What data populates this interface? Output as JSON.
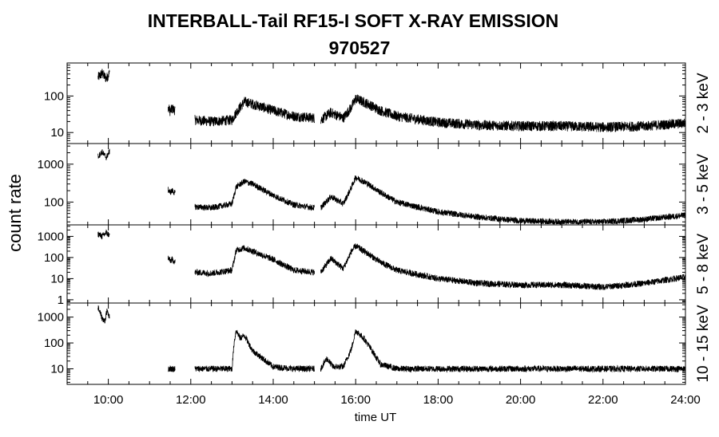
{
  "chart_data": {
    "type": "line",
    "title": "INTERBALL-Tail RF15-I SOFT X-RAY EMISSION",
    "subtitle": "970527",
    "ylabel": "count rate",
    "xlabel": "time UT",
    "xlim": [
      9,
      24
    ],
    "xticks": [
      "10:00",
      "12:00",
      "14:00",
      "16:00",
      "18:00",
      "20:00",
      "22:00",
      "24:00"
    ],
    "y_scale": "log",
    "grid": false,
    "panels": [
      {
        "name": "2 - 3 keV",
        "ylim": [
          5,
          800
        ],
        "yticks": [
          {
            "v": 10,
            "label": "10"
          },
          {
            "v": 100,
            "label": "100"
          }
        ],
        "noise": 0.14,
        "segments": [
          {
            "x": [
              9.75,
              9.85,
              9.95,
              10.03
            ],
            "y": [
              320,
              420,
              300,
              430
            ]
          },
          {
            "x": [
              11.45,
              11.5,
              11.55,
              11.62
            ],
            "y": [
              50,
              38,
              45,
              40
            ]
          },
          {
            "x": [
              12.1,
              12.5,
              13.0,
              13.1,
              13.3,
              13.5,
              14.0,
              14.5,
              15.0
            ],
            "y": [
              22,
              20,
              22,
              35,
              70,
              60,
              40,
              28,
              25
            ]
          },
          {
            "x": [
              15.15,
              15.4,
              15.7,
              15.9,
              16.0,
              16.3,
              16.6,
              17.0,
              18.0,
              19.0,
              20.0,
              21.0,
              22.0,
              23.0,
              24.0
            ],
            "y": [
              22,
              35,
              25,
              50,
              85,
              60,
              40,
              28,
              19,
              16,
              15,
              15,
              14,
              15,
              18
            ]
          }
        ]
      },
      {
        "name": "3 - 5 keV",
        "ylim": [
          25,
          3500
        ],
        "yticks": [
          {
            "v": 100,
            "label": "100"
          },
          {
            "v": 1000,
            "label": "1000"
          }
        ],
        "noise": 0.08,
        "segments": [
          {
            "x": [
              9.75,
              9.85,
              9.95,
              10.03
            ],
            "y": [
              1600,
              2100,
              1500,
              2200
            ]
          },
          {
            "x": [
              11.45,
              11.5,
              11.55,
              11.62
            ],
            "y": [
              210,
              180,
              200,
              170
            ]
          },
          {
            "x": [
              12.1,
              12.5,
              13.0,
              13.1,
              13.3,
              13.5,
              14.0,
              14.5,
              15.0
            ],
            "y": [
              75,
              70,
              90,
              250,
              350,
              300,
              150,
              85,
              70
            ]
          },
          {
            "x": [
              15.15,
              15.4,
              15.7,
              15.9,
              16.0,
              16.3,
              16.6,
              17.0,
              18.0,
              19.0,
              20.0,
              21.0,
              22.0,
              23.0,
              24.0
            ],
            "y": [
              70,
              140,
              90,
              250,
              450,
              300,
              180,
              100,
              55,
              40,
              32,
              30,
              30,
              35,
              45
            ]
          }
        ]
      },
      {
        "name": "5 - 8 keV",
        "ylim": [
          0.7,
          3500
        ],
        "yticks": [
          {
            "v": 1,
            "label": "1"
          },
          {
            "v": 10,
            "label": "10"
          },
          {
            "v": 100,
            "label": "100"
          },
          {
            "v": 1000,
            "label": "1000"
          }
        ],
        "noise": 0.15,
        "segments": [
          {
            "x": [
              9.75,
              9.85,
              9.95,
              10.03
            ],
            "y": [
              1300,
              1000,
              1500,
              1100
            ]
          },
          {
            "x": [
              11.45,
              11.5,
              11.55,
              11.62
            ],
            "y": [
              100,
              70,
              80,
              60
            ]
          },
          {
            "x": [
              12.1,
              12.5,
              13.0,
              13.1,
              13.3,
              13.5,
              14.0,
              14.5,
              15.0
            ],
            "y": [
              20,
              18,
              25,
              220,
              280,
              200,
              80,
              25,
              20
            ]
          },
          {
            "x": [
              15.15,
              15.4,
              15.7,
              15.9,
              16.0,
              16.3,
              16.6,
              17.0,
              18.0,
              19.0,
              20.0,
              21.0,
              22.0,
              23.0,
              24.0
            ],
            "y": [
              20,
              90,
              30,
              200,
              350,
              150,
              60,
              25,
              10,
              6,
              5,
              5,
              4,
              6,
              12
            ]
          }
        ]
      },
      {
        "name": "10 - 15 keV",
        "ylim": [
          2.5,
          3500
        ],
        "yticks": [
          {
            "v": 10,
            "label": "10"
          },
          {
            "v": 100,
            "label": "100"
          },
          {
            "v": 1000,
            "label": "1000"
          }
        ],
        "noise": 0.12,
        "segments": [
          {
            "x": [
              9.75,
              9.85,
              9.92,
              9.97,
              10.03
            ],
            "y": [
              2400,
              900,
              700,
              2000,
              900
            ]
          },
          {
            "x": [
              11.45,
              11.5,
              11.55,
              11.62
            ],
            "y": [
              10,
              10,
              10,
              10
            ]
          },
          {
            "x": [
              12.1,
              12.5,
              13.0,
              13.05,
              13.1,
              13.2,
              13.3,
              13.5,
              14.0,
              14.5,
              15.0
            ],
            "y": [
              10,
              10,
              10,
              100,
              320,
              150,
              200,
              50,
              12,
              10,
              10
            ]
          },
          {
            "x": [
              15.15,
              15.3,
              15.45,
              15.7,
              15.9,
              16.0,
              16.2,
              16.4,
              16.6,
              17.0,
              18.0,
              20.0,
              22.0,
              24.0
            ],
            "y": [
              10,
              25,
              12,
              12,
              60,
              300,
              150,
              50,
              15,
              10,
              10,
              10,
              10,
              10
            ]
          }
        ]
      }
    ]
  }
}
